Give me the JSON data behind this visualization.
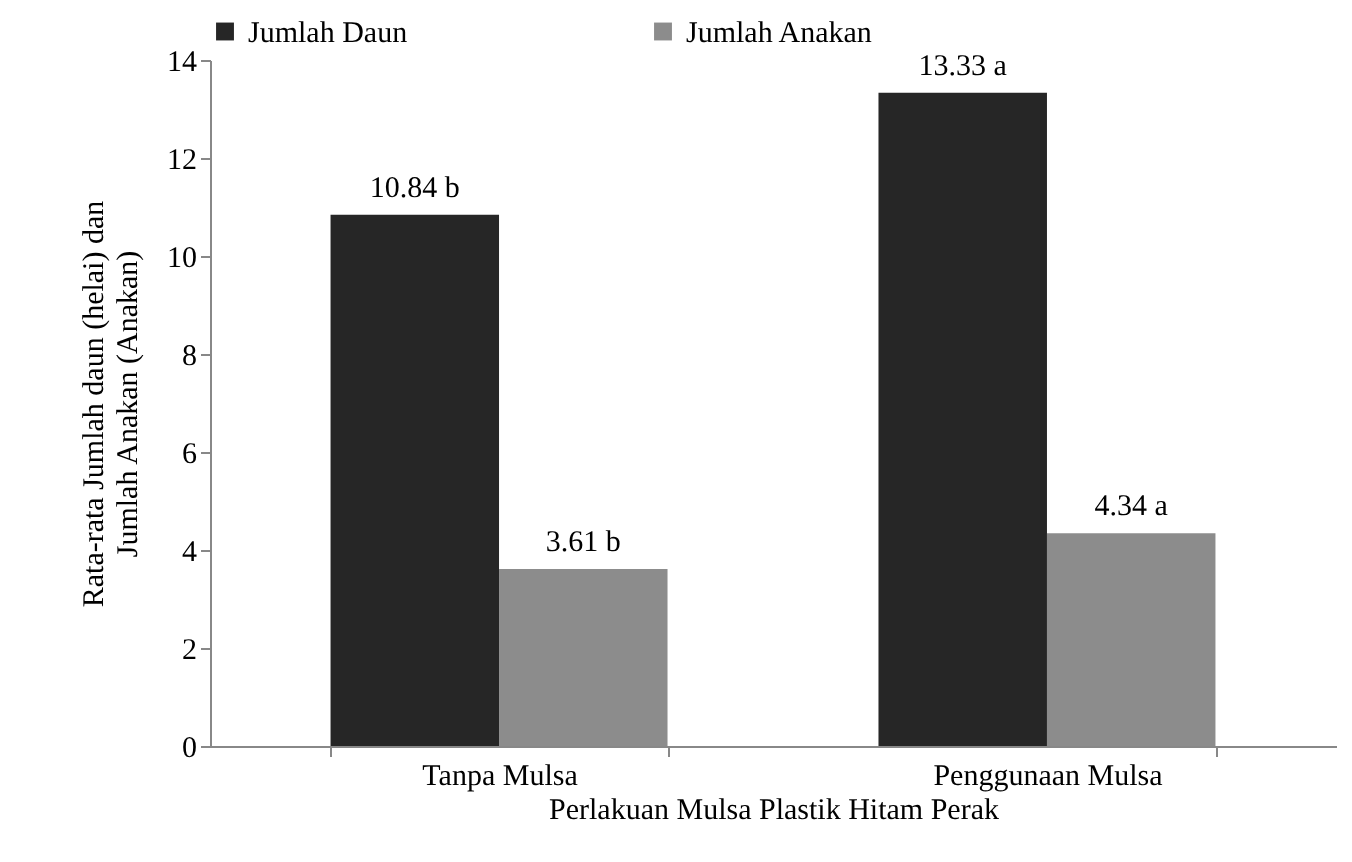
{
  "chart_data": {
    "type": "bar",
    "xlabel": "Perlakuan Mulsa Plastik Hitam Perak",
    "ylabel": "Rata-rata Jumlah daun (helai) dan\nJumlah Anakan (Anakan)",
    "categories": [
      "Tanpa Mulsa",
      "Penggunaan Mulsa"
    ],
    "series": [
      {
        "name": "Jumlah Daun",
        "color": "#262626",
        "values": [
          10.84,
          13.33
        ],
        "value_labels": [
          "10.84 b",
          "13.33 a"
        ]
      },
      {
        "name": "Jumlah Anakan",
        "color": "#8c8c8c",
        "values": [
          3.61,
          4.34
        ],
        "value_labels": [
          "3.61 b",
          "4.34 a"
        ]
      }
    ],
    "ylim": [
      0,
      14
    ],
    "yticks": [
      0,
      2,
      4,
      6,
      8,
      10,
      12,
      14
    ],
    "grid": false,
    "legend": "top"
  }
}
